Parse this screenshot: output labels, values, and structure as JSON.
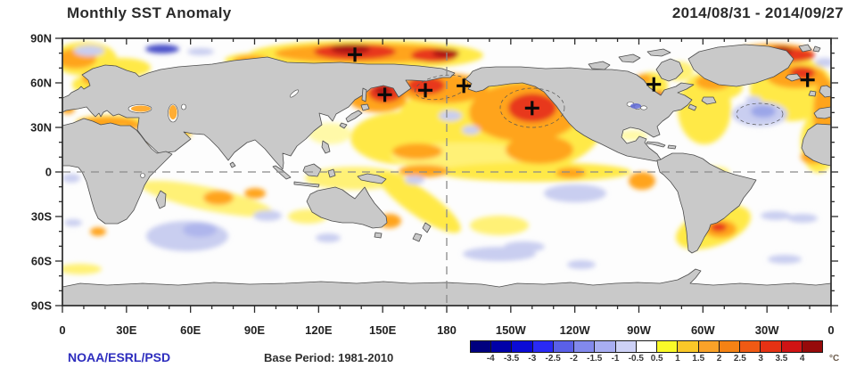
{
  "header": {
    "title": "Monthly SST Anomaly",
    "date_range": "2014/08/31 - 2014/09/27"
  },
  "footer": {
    "credit": "NOAA/ESRL/PSD",
    "base_period_label": "Base Period: 1981-2010"
  },
  "chart_data": {
    "type": "heatmap",
    "title": "Monthly SST Anomaly",
    "period": "2014/08/31 - 2014/09/27",
    "source": "NOAA/ESRL/PSD",
    "base_period": "1981-2010",
    "units": "°C",
    "map": {
      "projection": "equirectangular",
      "lon_range": [
        0,
        360
      ],
      "lat_range": [
        -90,
        90
      ],
      "reference_lines": {
        "equator_lat": 0,
        "dateline_lon": 180,
        "style": "dashed gray"
      },
      "land_color": "#c9c9c9",
      "ocean_color": "#fdfdfd"
    },
    "x_axis": {
      "tick_lons": [
        0,
        30,
        60,
        90,
        120,
        150,
        180,
        210,
        240,
        270,
        300,
        330,
        360
      ],
      "tick_labels": [
        "0",
        "30E",
        "60E",
        "90E",
        "120E",
        "150E",
        "180",
        "150W",
        "120W",
        "90W",
        "60W",
        "30W",
        "0"
      ],
      "minor_tick_step_deg": 10
    },
    "y_axis": {
      "tick_lats": [
        90,
        60,
        30,
        0,
        -30,
        -60,
        -90
      ],
      "tick_labels": [
        "90N",
        "60N",
        "30N",
        "0",
        "30S",
        "60S",
        "90S"
      ],
      "minor_tick_step_deg": 10
    },
    "colorbar": {
      "boundary_labels": [
        "-4",
        "-3.5",
        "-3",
        "-2.5",
        "-2",
        "-1.5",
        "-1",
        "-0.5",
        "0.5",
        "1",
        "1.5",
        "2",
        "2.5",
        "3",
        "3.5",
        "4"
      ],
      "cell_colors": [
        "#00007F",
        "#0000A8",
        "#0B0BD6",
        "#2A2AF5",
        "#5A60E8",
        "#8289EC",
        "#A8AEF2",
        "#CDD1F6",
        "#FFFFFF",
        "#FAFA28",
        "#FAC828",
        "#FAA228",
        "#F58214",
        "#F05A14",
        "#E63214",
        "#D01414",
        "#960A0A"
      ],
      "units_label": "°C"
    },
    "anomaly_maxima_markers": {
      "symbol": "+",
      "positions_lon_lat": [
        [
          137,
          79
        ],
        [
          151,
          52
        ],
        [
          170,
          55
        ],
        [
          188,
          58
        ],
        [
          220,
          43
        ],
        [
          277,
          59
        ],
        [
          349,
          62
        ]
      ]
    },
    "features": [
      "Strong warm anomalies (+2 to +4 °C) along the Arctic seas north of Siberia",
      "Large warm anomaly in the Northeast Pacific / Gulf of Alaska with local maximum marked +",
      "Warm anomalies in the Bering Sea, Sea of Okhotsk and around Kamchatka",
      "Warm anomalies near Iceland / Nordic seas and in Hudson Bay",
      "Moderate warm band along the equatorial and subtropical North Pacific",
      "Warm patch in the southwest Atlantic off Argentina / Uruguay",
      "Weak cool patches (-0.5 to -1.5 °C) in the central North Atlantic, southern Indian Ocean and South Pacific",
      "Mediterranean, Black Sea and Caspian Sea shown warmer than average"
    ]
  }
}
